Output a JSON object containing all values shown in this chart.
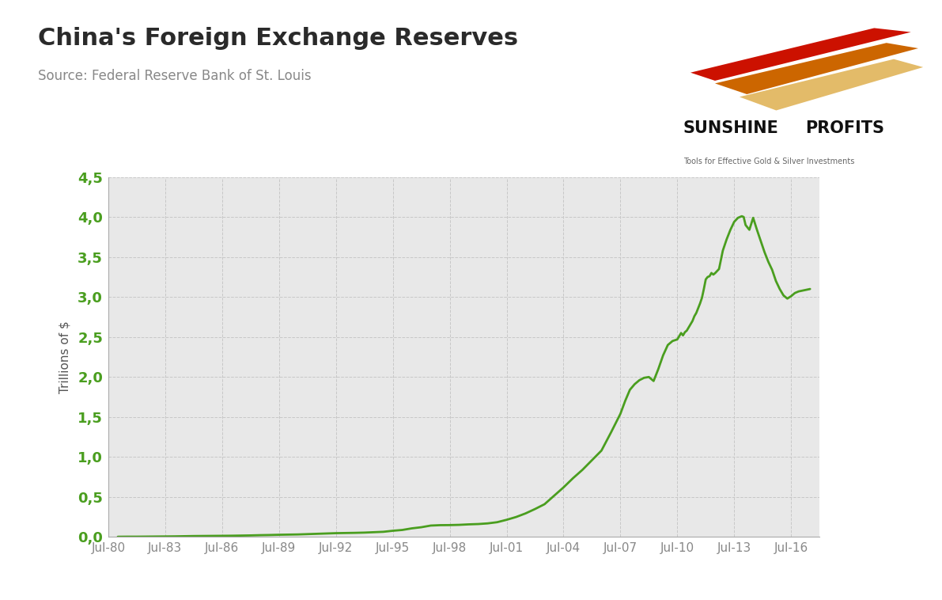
{
  "title": "China's Foreign Exchange Reserves",
  "subtitle": "Source: Federal Reserve Bank of St. Louis",
  "ylabel": "Trillions of $",
  "line_color": "#4a9e1f",
  "line_width": 2.0,
  "plot_bg_color": "#e8e8e8",
  "grid_color": "#c8c8c8",
  "title_color": "#2a2a2a",
  "subtitle_color": "#888888",
  "ytick_color": "#4a9e1f",
  "xtick_color": "#888888",
  "ylim": [
    0.0,
    4.5
  ],
  "xlim": [
    1980.0,
    2017.5
  ],
  "yticks": [
    0.0,
    0.5,
    1.0,
    1.5,
    2.0,
    2.5,
    3.0,
    3.5,
    4.0,
    4.5
  ],
  "ytick_labels": [
    "0,0",
    "0,5",
    "1,0",
    "1,5",
    "2,0",
    "2,5",
    "3,0",
    "3,5",
    "4,0",
    "4,5"
  ],
  "xtick_positions": [
    1980,
    1983,
    1986,
    1989,
    1992,
    1995,
    1998,
    2001,
    2004,
    2007,
    2010,
    2013,
    2016
  ],
  "xtick_labels": [
    "Jul-80",
    "Jul-83",
    "Jul-86",
    "Jul-89",
    "Jul-92",
    "Jul-95",
    "Jul-98",
    "Jul-01",
    "Jul-04",
    "Jul-07",
    "Jul-10",
    "Jul-13",
    "Jul-16"
  ],
  "data_x": [
    1980.5,
    1981.0,
    1981.5,
    1982.0,
    1982.5,
    1983.0,
    1983.5,
    1984.0,
    1984.5,
    1985.0,
    1985.5,
    1986.0,
    1986.5,
    1987.0,
    1987.5,
    1988.0,
    1988.5,
    1989.0,
    1989.5,
    1990.0,
    1990.5,
    1991.0,
    1991.5,
    1992.0,
    1992.5,
    1993.0,
    1993.5,
    1994.0,
    1994.5,
    1995.0,
    1995.5,
    1996.0,
    1996.5,
    1997.0,
    1997.5,
    1998.0,
    1998.5,
    1999.0,
    1999.5,
    2000.0,
    2000.5,
    2001.0,
    2001.5,
    2002.0,
    2002.5,
    2003.0,
    2003.5,
    2004.0,
    2004.5,
    2005.0,
    2005.5,
    2006.0,
    2006.5,
    2007.0,
    2007.25,
    2007.5,
    2007.75,
    2008.0,
    2008.25,
    2008.5,
    2008.75,
    2009.0,
    2009.25,
    2009.5,
    2009.75,
    2010.0,
    2010.1,
    2010.2,
    2010.3,
    2010.4,
    2010.5,
    2010.6,
    2010.7,
    2010.8,
    2010.9,
    2011.0,
    2011.1,
    2011.2,
    2011.3,
    2011.4,
    2011.5,
    2011.6,
    2011.7,
    2011.8,
    2011.9,
    2012.0,
    2012.2,
    2012.4,
    2012.6,
    2012.8,
    2013.0,
    2013.2,
    2013.4,
    2013.5,
    2013.6,
    2013.8,
    2014.0,
    2014.2,
    2014.4,
    2014.6,
    2014.8,
    2015.0,
    2015.2,
    2015.4,
    2015.6,
    2015.8,
    2016.0,
    2016.2,
    2016.4,
    2016.6,
    2016.8,
    2017.0
  ],
  "data_y": [
    0.003,
    0.004,
    0.004,
    0.005,
    0.006,
    0.007,
    0.008,
    0.01,
    0.012,
    0.013,
    0.014,
    0.015,
    0.016,
    0.018,
    0.02,
    0.023,
    0.025,
    0.028,
    0.03,
    0.032,
    0.036,
    0.04,
    0.044,
    0.048,
    0.05,
    0.052,
    0.055,
    0.06,
    0.065,
    0.078,
    0.088,
    0.108,
    0.122,
    0.143,
    0.148,
    0.149,
    0.152,
    0.158,
    0.162,
    0.17,
    0.185,
    0.215,
    0.25,
    0.295,
    0.35,
    0.41,
    0.515,
    0.62,
    0.735,
    0.84,
    0.96,
    1.08,
    1.305,
    1.54,
    1.7,
    1.84,
    1.91,
    1.96,
    1.99,
    2.0,
    1.95,
    2.1,
    2.27,
    2.4,
    2.45,
    2.47,
    2.51,
    2.55,
    2.52,
    2.56,
    2.58,
    2.62,
    2.66,
    2.7,
    2.76,
    2.8,
    2.86,
    2.92,
    2.99,
    3.1,
    3.22,
    3.25,
    3.26,
    3.3,
    3.28,
    3.3,
    3.35,
    3.58,
    3.72,
    3.84,
    3.94,
    3.99,
    4.01,
    4.0,
    3.9,
    3.84,
    3.99,
    3.84,
    3.7,
    3.56,
    3.44,
    3.34,
    3.2,
    3.1,
    3.02,
    2.98,
    3.01,
    3.05,
    3.07,
    3.08,
    3.09,
    3.1
  ],
  "logo_text1": "SUNSHINE",
  "logo_text2": "PROFITS",
  "logo_subtext": "Tools for Effective Gold & Silver Investments",
  "stripe_colors": [
    "#cc1100",
    "#dd6600",
    "#ddaa00"
  ],
  "fig_bg_color": "#ffffff",
  "border_color": "#cccccc"
}
